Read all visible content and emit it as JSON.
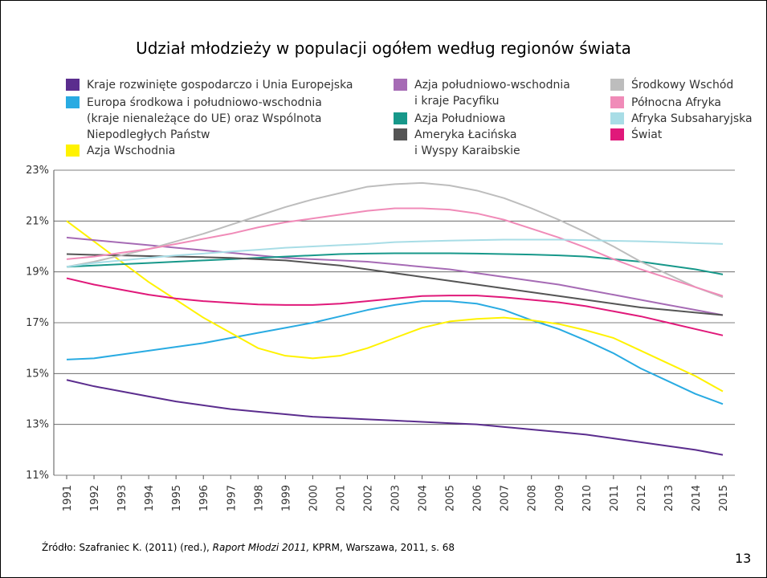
{
  "chart_data": {
    "type": "line",
    "title": "Udział młodzieży w populacji ogółem według regionów świata",
    "categories": [
      "1991",
      "1992",
      "1993",
      "1994",
      "1995",
      "1996",
      "1997",
      "1998",
      "1999",
      "2000",
      "2001",
      "2002",
      "2003",
      "2004",
      "2005",
      "2006",
      "2007",
      "2008",
      "2009",
      "2010",
      "2011",
      "2012",
      "2013",
      "2014",
      "2015"
    ],
    "ylim": [
      11,
      23
    ],
    "yticks": [
      {
        "value": 11,
        "label": "11%"
      },
      {
        "value": 13,
        "label": "13%"
      },
      {
        "value": 15,
        "label": "15%"
      },
      {
        "value": 17,
        "label": "17%"
      },
      {
        "value": 19,
        "label": "19%"
      },
      {
        "value": 21,
        "label": "21%"
      },
      {
        "value": 23,
        "label": "23%"
      }
    ],
    "grid": true,
    "series": [
      {
        "name": "Kraje rozwinięte gospodarczo i Unia Europejska",
        "color": "#5b2d8e",
        "values": [
          14.75,
          14.5,
          14.3,
          14.1,
          13.9,
          13.75,
          13.6,
          13.5,
          13.4,
          13.3,
          13.25,
          13.2,
          13.15,
          13.1,
          13.05,
          13.0,
          12.9,
          12.8,
          12.7,
          12.6,
          12.45,
          12.3,
          12.15,
          12.0,
          11.8
        ]
      },
      {
        "name": "Europa środkowa i południowo-wschodnia\n(kraje nienależące do UE) oraz Wspólnota\nNiepodległych Państw",
        "color": "#29abe2",
        "values": [
          15.55,
          15.6,
          15.75,
          15.9,
          16.05,
          16.2,
          16.4,
          16.6,
          16.8,
          17.0,
          17.25,
          17.5,
          17.7,
          17.85,
          17.85,
          17.75,
          17.5,
          17.1,
          16.75,
          16.3,
          15.8,
          15.2,
          14.7,
          14.2,
          13.8
        ]
      },
      {
        "name": "Azja Wschodnia",
        "color": "#fff200",
        "values": [
          21.0,
          20.2,
          19.4,
          18.6,
          17.9,
          17.2,
          16.6,
          16.0,
          15.7,
          15.6,
          15.7,
          16.0,
          16.4,
          16.8,
          17.05,
          17.15,
          17.2,
          17.1,
          16.95,
          16.7,
          16.4,
          15.9,
          15.4,
          14.9,
          14.3
        ]
      },
      {
        "name": "Azja południowo-wschodnia\ni kraje Pacyfiku",
        "color": "#a66bb5",
        "values": [
          20.35,
          20.25,
          20.15,
          20.05,
          19.95,
          19.85,
          19.75,
          19.65,
          19.55,
          19.5,
          19.45,
          19.4,
          19.3,
          19.2,
          19.1,
          18.95,
          18.8,
          18.65,
          18.5,
          18.3,
          18.1,
          17.9,
          17.7,
          17.5,
          17.3
        ]
      },
      {
        "name": "Azja Południowa",
        "color": "#17988a",
        "values": [
          19.2,
          19.25,
          19.3,
          19.35,
          19.4,
          19.45,
          19.5,
          19.55,
          19.6,
          19.65,
          19.7,
          19.72,
          19.73,
          19.73,
          19.73,
          19.72,
          19.7,
          19.68,
          19.65,
          19.6,
          19.5,
          19.4,
          19.25,
          19.1,
          18.9
        ]
      },
      {
        "name": "Ameryka Łacińska\ni Wyspy Karaibskie",
        "color": "#555555",
        "values": [
          19.7,
          19.67,
          19.65,
          19.62,
          19.6,
          19.58,
          19.55,
          19.5,
          19.45,
          19.35,
          19.25,
          19.1,
          18.95,
          18.8,
          18.65,
          18.5,
          18.35,
          18.2,
          18.05,
          17.9,
          17.75,
          17.6,
          17.5,
          17.4,
          17.3
        ]
      },
      {
        "name": "Środkowy Wschód",
        "color": "#bdbdbd",
        "values": [
          19.2,
          19.4,
          19.65,
          19.9,
          20.2,
          20.5,
          20.85,
          21.2,
          21.55,
          21.85,
          22.1,
          22.35,
          22.45,
          22.5,
          22.4,
          22.2,
          21.9,
          21.5,
          21.05,
          20.55,
          20.0,
          19.4,
          18.9,
          18.4,
          18.0
        ]
      },
      {
        "name": "Północna Afryka",
        "color": "#f08bb8",
        "values": [
          19.5,
          19.6,
          19.75,
          19.9,
          20.1,
          20.3,
          20.5,
          20.75,
          20.95,
          21.1,
          21.25,
          21.4,
          21.5,
          21.5,
          21.45,
          21.3,
          21.05,
          20.7,
          20.35,
          19.95,
          19.5,
          19.1,
          18.75,
          18.4,
          18.05
        ]
      },
      {
        "name": "Afryka Subsaharyjska",
        "color": "#a8dde6",
        "values": [
          19.2,
          19.35,
          19.45,
          19.55,
          19.65,
          19.72,
          19.8,
          19.87,
          19.95,
          20.0,
          20.05,
          20.1,
          20.17,
          20.2,
          20.23,
          20.25,
          20.27,
          20.27,
          20.27,
          20.25,
          20.22,
          20.2,
          20.17,
          20.13,
          20.1
        ]
      },
      {
        "name": "Świat",
        "color": "#e0197a",
        "values": [
          18.75,
          18.5,
          18.3,
          18.1,
          17.95,
          17.85,
          17.78,
          17.72,
          17.7,
          17.7,
          17.75,
          17.85,
          17.95,
          18.05,
          18.07,
          18.07,
          18.0,
          17.9,
          17.8,
          17.65,
          17.45,
          17.25,
          17.0,
          16.75,
          16.5
        ]
      }
    ]
  },
  "source": {
    "prefix": "Źródło: Szafraniec K. (2011) (red.), ",
    "italic": "Raport Młodzi 2011,",
    "suffix": " KPRM, Warszawa, 2011, s. 68"
  },
  "page_number": "13"
}
